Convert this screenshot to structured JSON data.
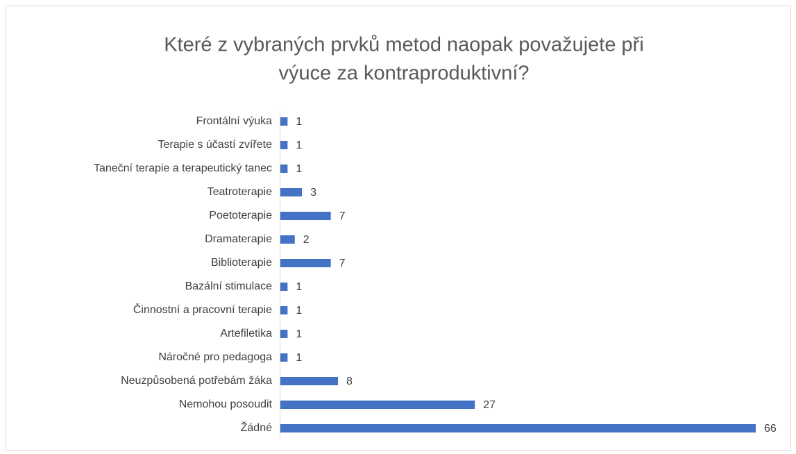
{
  "chart_data": {
    "type": "bar",
    "orientation": "horizontal",
    "title": [
      "Které z vybraných prvků metod naopak považujete při",
      "výuce za kontraproduktivní?"
    ],
    "categories": [
      "Frontální výuka",
      "Terapie s účastí zvířete",
      "Taneční terapie a terapeutický tanec",
      "Teatroterapie",
      "Poetoterapie",
      "Dramaterapie",
      "Biblioterapie",
      "Bazální stimulace",
      "Činnostní a pracovní terapie",
      "Artefiletika",
      "Náročné pro pedagoga",
      "Neuzpůsobená potřebám žáka",
      "Nemohou posoudit",
      "Žádné"
    ],
    "values": [
      1,
      1,
      1,
      3,
      7,
      2,
      7,
      1,
      1,
      1,
      1,
      8,
      27,
      66
    ],
    "color": "#4472c4"
  }
}
